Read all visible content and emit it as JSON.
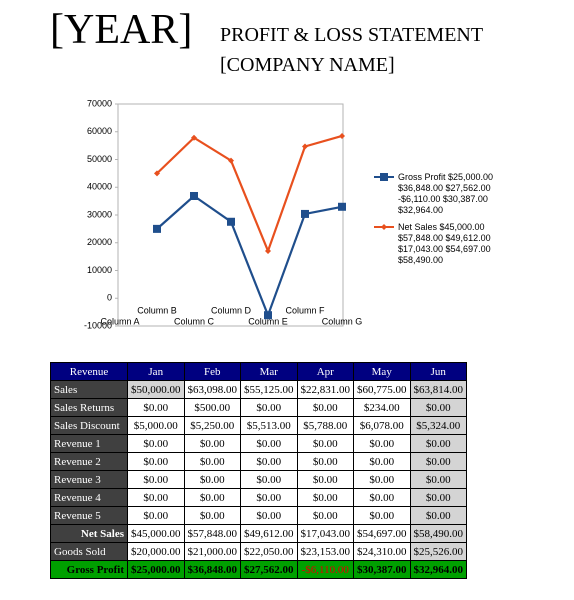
{
  "header": {
    "year": "[YEAR]",
    "title": "PROFIT & LOSS STATEMENT",
    "company": "[COMPANY NAME]"
  },
  "chart_data": {
    "type": "line",
    "categories": [
      "Column A",
      "Column B",
      "Column C",
      "Column D",
      "Column E",
      "Column F",
      "Column G"
    ],
    "series": [
      {
        "name": "Gross Profit $25,000.00 $36,848.00 $27,562.00 -$6,110.00 $30,387.00 $32,964.00",
        "color": "#1f4e8c",
        "marker": "square",
        "values": [
          null,
          25000,
          36848,
          27562,
          -6110,
          30387,
          32964
        ]
      },
      {
        "name": "Net Sales $45,000.00 $57,848.00 $49,612.00 $17,043.00 $54,697.00 $58,490.00",
        "color": "#e8501e",
        "marker": "diamond",
        "values": [
          null,
          45000,
          57848,
          49612,
          17043,
          54697,
          58490
        ]
      }
    ],
    "ylim": [
      -10000,
      70000
    ],
    "yticks": [
      -10000,
      0,
      10000,
      20000,
      30000,
      40000,
      50000,
      60000,
      70000
    ],
    "legend": "right"
  },
  "table": {
    "header": [
      "Revenue",
      "Jan",
      "Feb",
      "Mar",
      "Apr",
      "May",
      "Jun"
    ],
    "rows": [
      [
        "Sales",
        "$50,000.00",
        "$63,098.00",
        "$55,125.00",
        "$22,831.00",
        "$60,775.00",
        "$63,814.00"
      ],
      [
        "Sales Returns",
        "$0.00",
        "$500.00",
        "$0.00",
        "$0.00",
        "$234.00",
        "$0.00"
      ],
      [
        "Sales Discount",
        "$5,000.00",
        "$5,250.00",
        "$5,513.00",
        "$5,788.00",
        "$6,078.00",
        "$5,324.00"
      ],
      [
        "Revenue 1",
        "$0.00",
        "$0.00",
        "$0.00",
        "$0.00",
        "$0.00",
        "$0.00"
      ],
      [
        "Revenue 2",
        "$0.00",
        "$0.00",
        "$0.00",
        "$0.00",
        "$0.00",
        "$0.00"
      ],
      [
        "Revenue 3",
        "$0.00",
        "$0.00",
        "$0.00",
        "$0.00",
        "$0.00",
        "$0.00"
      ],
      [
        "Revenue 4",
        "$0.00",
        "$0.00",
        "$0.00",
        "$0.00",
        "$0.00",
        "$0.00"
      ],
      [
        "Revenue 5",
        "$0.00",
        "$0.00",
        "$0.00",
        "$0.00",
        "$0.00",
        "$0.00"
      ],
      [
        "Net Sales",
        "$45,000.00",
        "$57,848.00",
        "$49,612.00",
        "$17,043.00",
        "$54,697.00",
        "$58,490.00"
      ],
      [
        "Goods Sold",
        "$20,000.00",
        "$21,000.00",
        "$22,050.00",
        "$23,153.00",
        "$24,310.00",
        "$25,526.00"
      ],
      [
        "Gross Profit",
        "$25,000.00",
        "$36,848.00",
        "$27,562.00",
        "-$6,110.00",
        "$30,387.00",
        "$32,964.00"
      ]
    ]
  }
}
